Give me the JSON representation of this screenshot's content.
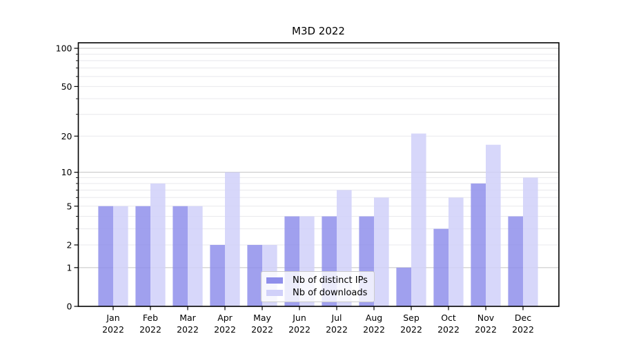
{
  "title": "M3D 2022",
  "chart_data": {
    "type": "bar",
    "scale": "log1p",
    "title": "M3D 2022",
    "categories": [
      "Jan",
      "Feb",
      "Mar",
      "Apr",
      "May",
      "Jun",
      "Jul",
      "Aug",
      "Sep",
      "Oct",
      "Nov",
      "Dec"
    ],
    "category_year": "2022",
    "series": [
      {
        "name": "Nb of distinct IPs",
        "values": [
          5,
          5,
          5,
          2,
          2,
          4,
          4,
          4,
          1,
          3,
          8,
          4
        ],
        "color": "#8f8feb"
      },
      {
        "name": "Nb of downloads",
        "values": [
          5,
          8,
          5,
          10,
          2,
          4,
          7,
          6,
          21,
          6,
          17,
          9
        ],
        "color": "#d0d0f9"
      }
    ],
    "yticks": [
      0,
      1,
      2,
      5,
      10,
      20,
      50,
      100
    ],
    "minor_yticks": [
      3,
      4,
      6,
      7,
      8,
      9,
      30,
      40,
      60,
      70,
      80,
      90
    ],
    "major_grid_values": [
      1,
      10,
      100
    ],
    "ylim": [
      0,
      111
    ],
    "grid": true,
    "legend_position": "lower center",
    "bar_opacity": 0.85,
    "colors": {
      "grid_major": "#c3c3c3",
      "grid_minor": "#e8e8ec",
      "spine": "#000000",
      "text": "#000000"
    }
  }
}
